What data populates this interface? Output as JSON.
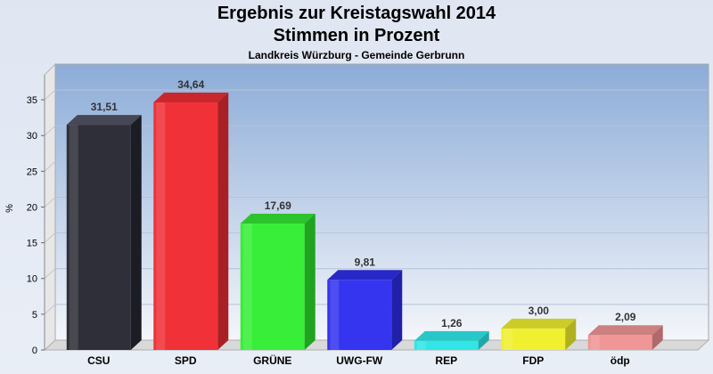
{
  "header": {
    "title": "Ergebnis zur Kreistagswahl 2014",
    "subtitle": "Stimmen in Prozent",
    "caption": "Landkreis Würzburg - Gemeinde Gerbrunn"
  },
  "chart_data": {
    "type": "bar",
    "title": "Ergebnis zur Kreistagswahl 2014",
    "subtitle": "Stimmen in Prozent",
    "ylabel": "%",
    "ylim": [
      0,
      38.5
    ],
    "yticks": [
      0,
      5,
      10,
      15,
      20,
      25,
      30,
      35
    ],
    "grid": true,
    "categories": [
      "CSU",
      "SPD",
      "GRÜNE",
      "UWG-FW",
      "REP",
      "FDP",
      "ödp"
    ],
    "values": [
      31.51,
      34.64,
      17.69,
      9.81,
      1.26,
      3.0,
      2.09
    ],
    "value_labels": [
      "31,51",
      "34,64",
      "17,69",
      "9,81",
      "1,26",
      "3,00",
      "2,09"
    ],
    "colors": [
      "#2e2f38",
      "#f03238",
      "#38ee38",
      "#3535f0",
      "#30e6e6",
      "#f0f030",
      "#f09696"
    ],
    "side_colors": [
      "#1c1d24",
      "#a82024",
      "#20a420",
      "#2020a8",
      "#20a8a8",
      "#b0b020",
      "#b06a6a"
    ],
    "top_colors": [
      "#474856",
      "#c8282c",
      "#2cc42c",
      "#2828c8",
      "#28c8c8",
      "#cccc28",
      "#cc8080"
    ]
  }
}
